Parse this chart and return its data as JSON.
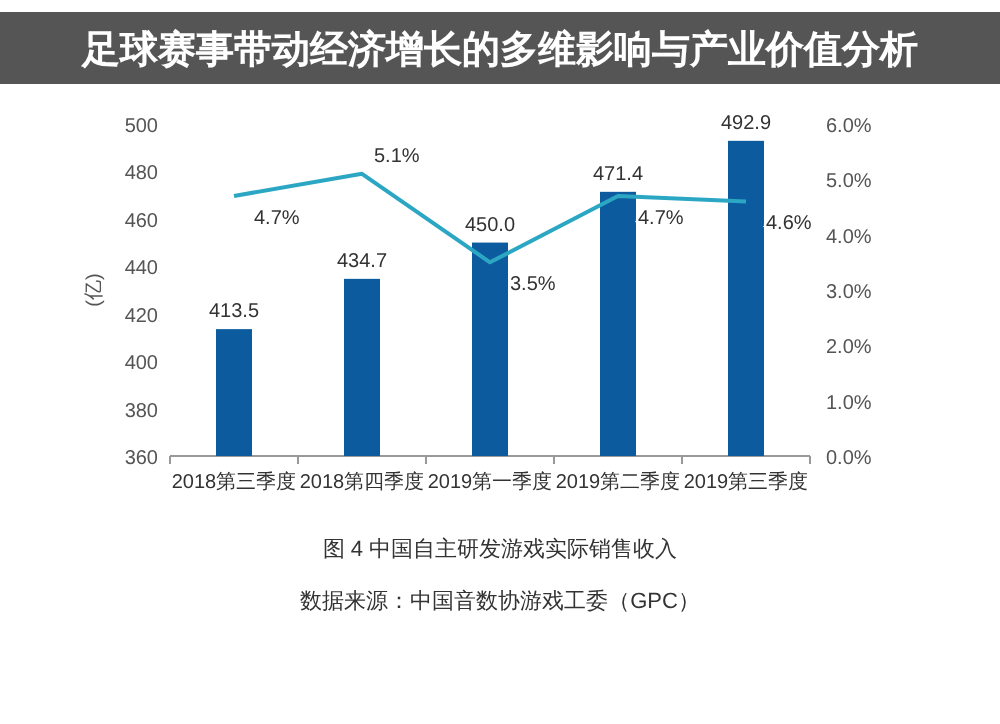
{
  "chart_data": {
    "type": "bar",
    "title": "足球赛事带动经济增长的多维影响与产业价值分析",
    "categories": [
      "2018第三季度",
      "2018第四季度",
      "2019第一季度",
      "2019第二季度",
      "2019第三季度"
    ],
    "ylabel": "(亿)",
    "ylim": [
      360,
      500
    ],
    "yticks": [
      360,
      380,
      400,
      420,
      440,
      460,
      480,
      500
    ],
    "y2lim": [
      0,
      6
    ],
    "y2ticks": [
      {
        "value": 0,
        "label": "0.0%"
      },
      {
        "value": 1,
        "label": "1.0%"
      },
      {
        "value": 2,
        "label": "2.0%"
      },
      {
        "value": 3,
        "label": "3.0%"
      },
      {
        "value": 4,
        "label": "4.0%"
      },
      {
        "value": 5,
        "label": "5.0%"
      },
      {
        "value": 6,
        "label": "6.0%"
      }
    ],
    "series": [
      {
        "color": "#0b5b9e",
        "values": [
          413.5,
          434.7,
          450.0,
          471.4,
          492.9
        ],
        "value_labels": [
          "413.5",
          "434.7",
          "450.0",
          "471.4",
          "492.9"
        ]
      },
      {
        "type": "line",
        "axis": "y2",
        "color": "#2ba7c4",
        "values": [
          4.7,
          5.1,
          3.5,
          4.7,
          4.6
        ],
        "value_labels": [
          "4.7%",
          "5.1%",
          "3.5%",
          "4.7%",
          "4.6%"
        ]
      }
    ],
    "annotations": [
      "图 4  中国自主研发游戏实际销售收入",
      "数据来源：中国音数协游戏工委（GPC）"
    ],
    "grid": false
  }
}
